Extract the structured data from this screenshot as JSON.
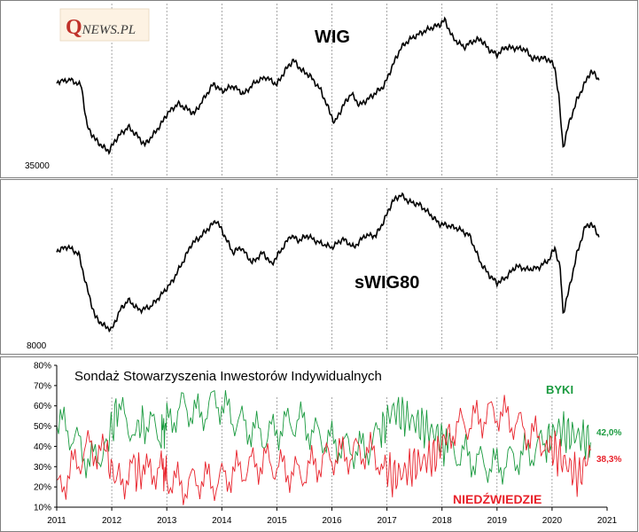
{
  "logo": {
    "letter": "Q",
    "rest": "NEWS.PL"
  },
  "chart_data": [
    {
      "type": "line",
      "title": "WIG",
      "y_tick_label": "35000",
      "series": [
        {
          "values": [
            [
              2011.0,
              53400
            ],
            [
              2011.25,
              53900
            ],
            [
              2011.45,
              52500
            ],
            [
              2011.55,
              43500
            ],
            [
              2011.7,
              40500
            ],
            [
              2011.85,
              38700
            ],
            [
              2011.95,
              37900
            ],
            [
              2012.1,
              41000
            ],
            [
              2012.3,
              43300
            ],
            [
              2012.45,
              41500
            ],
            [
              2012.6,
              39300
            ],
            [
              2012.75,
              41500
            ],
            [
              2012.9,
              44000
            ],
            [
              2013.0,
              46200
            ],
            [
              2013.2,
              48500
            ],
            [
              2013.35,
              47500
            ],
            [
              2013.5,
              46300
            ],
            [
              2013.7,
              50200
            ],
            [
              2013.85,
              53000
            ],
            [
              2014.0,
              51300
            ],
            [
              2014.2,
              52500
            ],
            [
              2014.4,
              50700
            ],
            [
              2014.6,
              53300
            ],
            [
              2014.8,
              54500
            ],
            [
              2015.0,
              52800
            ],
            [
              2015.15,
              56000
            ],
            [
              2015.3,
              58300
            ],
            [
              2015.45,
              56000
            ],
            [
              2015.6,
              54800
            ],
            [
              2015.8,
              51500
            ],
            [
              2015.95,
              47000
            ],
            [
              2016.05,
              44200
            ],
            [
              2016.2,
              48000
            ],
            [
              2016.35,
              50800
            ],
            [
              2016.5,
              48200
            ],
            [
              2016.65,
              49500
            ],
            [
              2016.8,
              51000
            ],
            [
              2016.95,
              52600
            ],
            [
              2017.1,
              57000
            ],
            [
              2017.25,
              61000
            ],
            [
              2017.4,
              62800
            ],
            [
              2017.6,
              64300
            ],
            [
              2017.8,
              65500
            ],
            [
              2017.95,
              66200
            ],
            [
              2018.05,
              67300
            ],
            [
              2018.2,
              63200
            ],
            [
              2018.4,
              61200
            ],
            [
              2018.55,
              62500
            ],
            [
              2018.7,
              63000
            ],
            [
              2018.85,
              60700
            ],
            [
              2019.0,
              59500
            ],
            [
              2019.15,
              61200
            ],
            [
              2019.3,
              61000
            ],
            [
              2019.5,
              60800
            ],
            [
              2019.65,
              58600
            ],
            [
              2019.8,
              58800
            ],
            [
              2019.95,
              58400
            ],
            [
              2020.05,
              56600
            ],
            [
              2020.12,
              50500
            ],
            [
              2020.2,
              38700
            ],
            [
              2020.3,
              43800
            ],
            [
              2020.45,
              49300
            ],
            [
              2020.6,
              53200
            ],
            [
              2020.7,
              55700
            ],
            [
              2020.8,
              54900
            ],
            [
              2020.85,
              53800
            ]
          ]
        }
      ]
    },
    {
      "type": "line",
      "title": "sWIG80",
      "y_tick_label": "8000",
      "series": [
        {
          "values": [
            [
              2011.0,
              13400
            ],
            [
              2011.2,
              13650
            ],
            [
              2011.4,
              13200
            ],
            [
              2011.55,
              11200
            ],
            [
              2011.7,
              9500
            ],
            [
              2011.85,
              9000
            ],
            [
              2012.0,
              8750
            ],
            [
              2012.15,
              9900
            ],
            [
              2012.3,
              10500
            ],
            [
              2012.5,
              9900
            ],
            [
              2012.7,
              10100
            ],
            [
              2012.9,
              10800
            ],
            [
              2013.1,
              11600
            ],
            [
              2013.3,
              12800
            ],
            [
              2013.45,
              13800
            ],
            [
              2013.6,
              14200
            ],
            [
              2013.75,
              14700
            ],
            [
              2013.9,
              15200
            ],
            [
              2014.05,
              14300
            ],
            [
              2014.2,
              13300
            ],
            [
              2014.35,
              13600
            ],
            [
              2014.55,
              12700
            ],
            [
              2014.75,
              13300
            ],
            [
              2014.9,
              12600
            ],
            [
              2015.05,
              13300
            ],
            [
              2015.25,
              14300
            ],
            [
              2015.4,
              14000
            ],
            [
              2015.55,
              14300
            ],
            [
              2015.75,
              13900
            ],
            [
              2016.0,
              13600
            ],
            [
              2016.2,
              14100
            ],
            [
              2016.4,
              13600
            ],
            [
              2016.6,
              14300
            ],
            [
              2016.8,
              14300
            ],
            [
              2016.95,
              15200
            ],
            [
              2017.1,
              16300
            ],
            [
              2017.25,
              16700
            ],
            [
              2017.4,
              16300
            ],
            [
              2017.6,
              16100
            ],
            [
              2017.8,
              15500
            ],
            [
              2017.95,
              15000
            ],
            [
              2018.1,
              14900
            ],
            [
              2018.3,
              14700
            ],
            [
              2018.5,
              14300
            ],
            [
              2018.7,
              12700
            ],
            [
              2018.85,
              12000
            ],
            [
              2019.0,
              11500
            ],
            [
              2019.15,
              11800
            ],
            [
              2019.35,
              12500
            ],
            [
              2019.55,
              12300
            ],
            [
              2019.75,
              12400
            ],
            [
              2019.95,
              12900
            ],
            [
              2020.05,
              13600
            ],
            [
              2020.15,
              12300
            ],
            [
              2020.2,
              9700
            ],
            [
              2020.3,
              11000
            ],
            [
              2020.45,
              13200
            ],
            [
              2020.6,
              14800
            ],
            [
              2020.7,
              15000
            ],
            [
              2020.8,
              14600
            ],
            [
              2020.85,
              14200
            ]
          ]
        }
      ]
    },
    {
      "type": "line",
      "title": "Sondaż Stowarzyszenia Inwestorów Indywidualnych",
      "xlim": [
        2011,
        2021
      ],
      "ylim": [
        10,
        80
      ],
      "x_tick_labels": [
        "2011",
        "2012",
        "2013",
        "2014",
        "2015",
        "2016",
        "2017",
        "2018",
        "2019",
        "2020",
        "2021"
      ],
      "y_tick_labels": [
        "10%",
        "20%",
        "30%",
        "40%",
        "50%",
        "60%",
        "70%",
        "80%"
      ],
      "series": [
        {
          "name": "BYKI",
          "color": "#1a9a3f",
          "end_label": "42,0%",
          "values": [
            [
              2011.0,
              53
            ],
            [
              2011.3,
              45
            ],
            [
              2011.6,
              32
            ],
            [
              2011.9,
              40
            ],
            [
              2012.1,
              58
            ],
            [
              2012.4,
              48
            ],
            [
              2012.6,
              52
            ],
            [
              2012.9,
              47
            ],
            [
              2013.0,
              51
            ],
            [
              2013.3,
              60
            ],
            [
              2013.6,
              55
            ],
            [
              2013.9,
              63
            ],
            [
              2014.2,
              54
            ],
            [
              2014.5,
              49
            ],
            [
              2014.8,
              45
            ],
            [
              2015.1,
              50
            ],
            [
              2015.4,
              53
            ],
            [
              2015.7,
              46
            ],
            [
              2016.0,
              42
            ],
            [
              2016.3,
              39
            ],
            [
              2016.6,
              38
            ],
            [
              2016.9,
              47
            ],
            [
              2017.1,
              58
            ],
            [
              2017.3,
              55
            ],
            [
              2017.5,
              52
            ],
            [
              2017.7,
              49
            ],
            [
              2017.9,
              46
            ],
            [
              2018.1,
              38
            ],
            [
              2018.4,
              36
            ],
            [
              2018.7,
              32
            ],
            [
              2019.0,
              30
            ],
            [
              2019.3,
              34
            ],
            [
              2019.6,
              37
            ],
            [
              2019.9,
              42
            ],
            [
              2020.1,
              49
            ],
            [
              2020.3,
              46
            ],
            [
              2020.5,
              45
            ],
            [
              2020.7,
              42
            ]
          ]
        },
        {
          "name": "NIEDŹWIEDZIE",
          "color": "#e8212a",
          "end_label": "38,3%",
          "values": [
            [
              2011.0,
              17
            ],
            [
              2011.3,
              30
            ],
            [
              2011.6,
              40
            ],
            [
              2011.9,
              35
            ],
            [
              2012.1,
              22
            ],
            [
              2012.4,
              28
            ],
            [
              2012.6,
              26
            ],
            [
              2012.9,
              30
            ],
            [
              2013.0,
              25
            ],
            [
              2013.3,
              20
            ],
            [
              2013.6,
              24
            ],
            [
              2013.9,
              22
            ],
            [
              2014.2,
              27
            ],
            [
              2014.5,
              30
            ],
            [
              2014.8,
              33
            ],
            [
              2015.1,
              29
            ],
            [
              2015.4,
              26
            ],
            [
              2015.7,
              31
            ],
            [
              2016.0,
              35
            ],
            [
              2016.3,
              36
            ],
            [
              2016.6,
              38
            ],
            [
              2016.9,
              33
            ],
            [
              2017.1,
              25
            ],
            [
              2017.3,
              27
            ],
            [
              2017.5,
              31
            ],
            [
              2017.7,
              33
            ],
            [
              2017.9,
              36
            ],
            [
              2018.1,
              47
            ],
            [
              2018.4,
              51
            ],
            [
              2018.7,
              54
            ],
            [
              2019.0,
              57
            ],
            [
              2019.3,
              52
            ],
            [
              2019.6,
              46
            ],
            [
              2019.9,
              42
            ],
            [
              2020.1,
              36
            ],
            [
              2020.3,
              30
            ],
            [
              2020.5,
              25
            ],
            [
              2020.7,
              38
            ]
          ]
        }
      ]
    }
  ]
}
